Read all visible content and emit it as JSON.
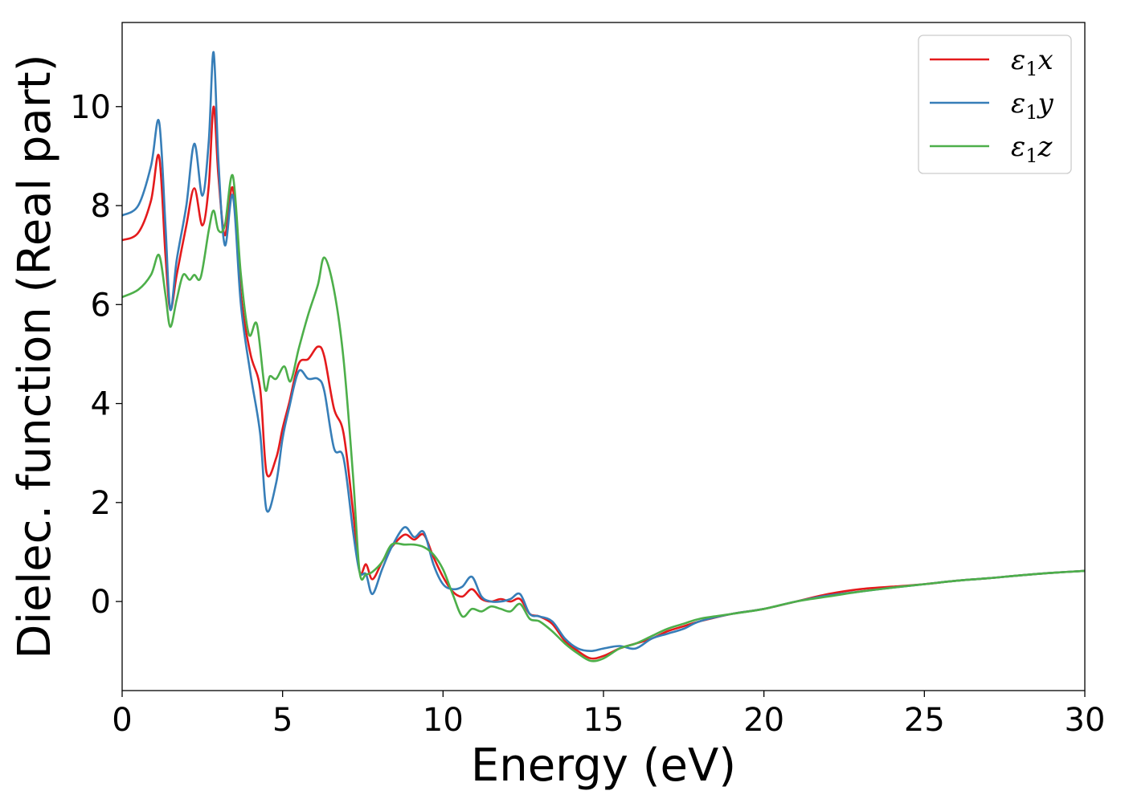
{
  "chart_data": {
    "type": "line",
    "title": "",
    "xlabel": "Energy (eV)",
    "ylabel": "Dielec. function (Real part)",
    "xlim": [
      0,
      30
    ],
    "ylim": [
      -1.8,
      11.7
    ],
    "xticks": [
      0,
      5,
      10,
      15,
      20,
      25,
      30
    ],
    "yticks": [
      0,
      2,
      4,
      6,
      8,
      10
    ],
    "grid": false,
    "legend_position": "top-right",
    "series": [
      {
        "name": "ε₁x",
        "legend_main": "ε",
        "legend_sub": "1",
        "legend_tail": "x",
        "color": "#e41a1c",
        "x": [
          0,
          0.5,
          0.9,
          1.15,
          1.35,
          1.5,
          1.7,
          2.0,
          2.25,
          2.5,
          2.7,
          2.85,
          3.0,
          3.2,
          3.45,
          3.7,
          4.0,
          4.3,
          4.5,
          4.8,
          5.0,
          5.2,
          5.5,
          5.8,
          6.1,
          6.3,
          6.6,
          6.9,
          7.2,
          7.4,
          7.6,
          7.8,
          8.1,
          8.4,
          8.8,
          9.1,
          9.4,
          9.7,
          10.0,
          10.3,
          10.6,
          10.9,
          11.2,
          11.5,
          11.8,
          12.1,
          12.4,
          12.7,
          13.0,
          13.4,
          13.8,
          14.2,
          14.6,
          15.0,
          15.5,
          16.0,
          16.5,
          17.0,
          17.5,
          18.0,
          19.0,
          20.0,
          21.0,
          22.0,
          23.0,
          24.0,
          25.0,
          26.0,
          27.0,
          28.0,
          29.0,
          30.0
        ],
        "y": [
          7.3,
          7.45,
          8.1,
          9.0,
          7.0,
          5.9,
          6.6,
          7.6,
          8.35,
          7.6,
          8.4,
          10.0,
          8.6,
          7.4,
          8.35,
          6.2,
          5.0,
          4.3,
          2.6,
          2.9,
          3.5,
          4.0,
          4.8,
          4.9,
          5.15,
          4.95,
          3.9,
          3.4,
          1.8,
          0.6,
          0.75,
          0.45,
          0.8,
          1.1,
          1.35,
          1.25,
          1.35,
          0.9,
          0.5,
          0.2,
          0.1,
          0.25,
          0.05,
          0.0,
          0.05,
          0.0,
          0.05,
          -0.25,
          -0.3,
          -0.45,
          -0.8,
          -1.0,
          -1.15,
          -1.1,
          -0.95,
          -0.85,
          -0.75,
          -0.6,
          -0.5,
          -0.4,
          -0.25,
          -0.15,
          0.0,
          0.15,
          0.25,
          0.3,
          0.35,
          0.42,
          0.47,
          0.53,
          0.58,
          0.62
        ]
      },
      {
        "name": "ε₁y",
        "legend_main": "ε",
        "legend_sub": "1",
        "legend_tail": "y",
        "color": "#377eb8",
        "x": [
          0,
          0.5,
          0.9,
          1.15,
          1.35,
          1.5,
          1.7,
          2.0,
          2.25,
          2.5,
          2.7,
          2.85,
          3.0,
          3.2,
          3.45,
          3.7,
          4.0,
          4.3,
          4.5,
          4.8,
          5.0,
          5.2,
          5.5,
          5.8,
          6.1,
          6.3,
          6.6,
          6.9,
          7.2,
          7.4,
          7.6,
          7.8,
          8.1,
          8.4,
          8.8,
          9.1,
          9.4,
          9.7,
          10.0,
          10.3,
          10.6,
          10.9,
          11.2,
          11.5,
          11.8,
          12.1,
          12.4,
          12.7,
          13.0,
          13.4,
          13.8,
          14.2,
          14.6,
          15.0,
          15.5,
          16.0,
          16.5,
          17.0,
          17.5,
          18.0,
          19.0,
          20.0,
          21.0,
          22.0,
          23.0,
          24.0,
          25.0,
          26.0,
          27.0,
          28.0,
          29.0,
          30.0
        ],
        "y": [
          7.8,
          8.0,
          8.8,
          9.7,
          7.6,
          5.9,
          6.9,
          8.0,
          9.25,
          8.2,
          9.3,
          11.1,
          8.9,
          7.2,
          8.2,
          6.0,
          4.6,
          3.4,
          1.85,
          2.4,
          3.3,
          3.9,
          4.65,
          4.5,
          4.5,
          4.25,
          3.1,
          2.9,
          1.4,
          0.6,
          0.55,
          0.15,
          0.65,
          1.1,
          1.5,
          1.3,
          1.4,
          0.75,
          0.35,
          0.25,
          0.3,
          0.5,
          0.1,
          0.0,
          0.0,
          0.05,
          0.15,
          -0.25,
          -0.3,
          -0.4,
          -0.75,
          -0.95,
          -1.0,
          -0.95,
          -0.9,
          -0.95,
          -0.75,
          -0.65,
          -0.55,
          -0.4,
          -0.25,
          -0.15,
          0.0,
          0.12,
          0.2,
          0.28,
          0.35,
          0.42,
          0.47,
          0.53,
          0.58,
          0.62
        ]
      },
      {
        "name": "ε₁z",
        "legend_main": "ε",
        "legend_sub": "1",
        "legend_tail": "z",
        "color": "#4daf4a",
        "x": [
          0,
          0.5,
          0.9,
          1.15,
          1.35,
          1.5,
          1.7,
          1.9,
          2.1,
          2.25,
          2.45,
          2.7,
          2.85,
          3.0,
          3.2,
          3.45,
          3.7,
          3.95,
          4.2,
          4.45,
          4.6,
          4.8,
          5.05,
          5.25,
          5.5,
          5.8,
          6.1,
          6.3,
          6.6,
          6.9,
          7.2,
          7.4,
          7.6,
          7.8,
          8.1,
          8.4,
          8.8,
          9.1,
          9.4,
          9.7,
          10.0,
          10.3,
          10.6,
          10.9,
          11.2,
          11.5,
          11.8,
          12.1,
          12.4,
          12.7,
          13.0,
          13.4,
          13.8,
          14.2,
          14.6,
          15.0,
          15.5,
          16.0,
          16.5,
          17.0,
          17.5,
          18.0,
          19.0,
          20.0,
          21.0,
          22.0,
          23.0,
          24.0,
          25.0,
          26.0,
          27.0,
          28.0,
          29.0,
          30.0
        ],
        "y": [
          6.15,
          6.3,
          6.6,
          7.0,
          6.2,
          5.55,
          6.1,
          6.6,
          6.5,
          6.6,
          6.55,
          7.5,
          7.9,
          7.5,
          7.6,
          8.6,
          6.6,
          5.4,
          5.6,
          4.3,
          4.55,
          4.5,
          4.75,
          4.45,
          5.1,
          5.8,
          6.4,
          6.95,
          6.3,
          4.9,
          2.5,
          0.6,
          0.55,
          0.6,
          0.8,
          1.15,
          1.15,
          1.15,
          1.1,
          0.95,
          0.65,
          0.15,
          -0.3,
          -0.15,
          -0.2,
          -0.1,
          -0.15,
          -0.2,
          -0.05,
          -0.35,
          -0.4,
          -0.6,
          -0.85,
          -1.05,
          -1.2,
          -1.15,
          -0.95,
          -0.85,
          -0.7,
          -0.55,
          -0.45,
          -0.35,
          -0.25,
          -0.15,
          0.0,
          0.1,
          0.2,
          0.28,
          0.35,
          0.42,
          0.47,
          0.53,
          0.58,
          0.62
        ]
      }
    ]
  }
}
